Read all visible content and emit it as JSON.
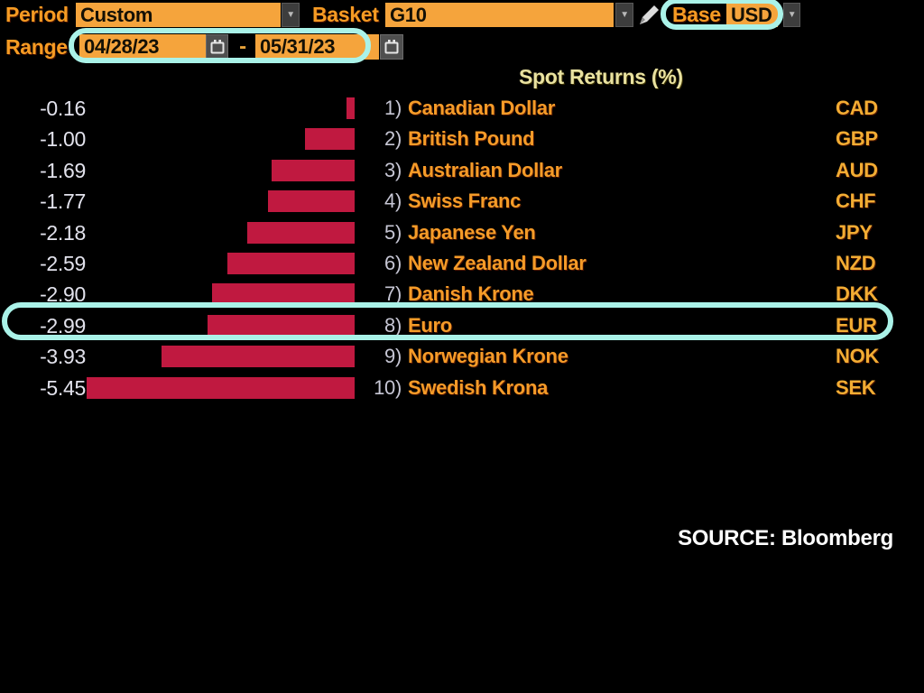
{
  "toolbar": {
    "period": {
      "label": "Period",
      "value": "Custom"
    },
    "basket": {
      "label": "Basket",
      "value": "G10"
    },
    "base": {
      "label": "Base",
      "value": "USD"
    },
    "range": {
      "label": "Range",
      "start": "04/28/23",
      "separator": "-",
      "end": "05/31/23"
    }
  },
  "icons": {
    "dropdown_arrow": "▼",
    "pencil": "edit-pencil",
    "calendar": "calendar"
  },
  "chart_data": {
    "type": "bar",
    "orientation": "horizontal",
    "title": "Spot Returns (%)",
    "unit": "%",
    "value_axis": {
      "min": -5.45,
      "max": 0,
      "zero_anchor": "right"
    },
    "grid": false,
    "legend": false,
    "bar_color": "#C01940",
    "rows": [
      {
        "rank": "1)",
        "name": "Canadian Dollar",
        "code": "CAD",
        "value": -0.16,
        "value_label": "-0.16"
      },
      {
        "rank": "2)",
        "name": "British Pound",
        "code": "GBP",
        "value": -1.0,
        "value_label": "-1.00"
      },
      {
        "rank": "3)",
        "name": "Australian Dollar",
        "code": "AUD",
        "value": -1.69,
        "value_label": "-1.69"
      },
      {
        "rank": "4)",
        "name": "Swiss Franc",
        "code": "CHF",
        "value": -1.77,
        "value_label": "-1.77"
      },
      {
        "rank": "5)",
        "name": "Japanese Yen",
        "code": "JPY",
        "value": -2.18,
        "value_label": "-2.18"
      },
      {
        "rank": "6)",
        "name": "New Zealand Dollar",
        "code": "NZD",
        "value": -2.59,
        "value_label": "-2.59"
      },
      {
        "rank": "7)",
        "name": "Danish Krone",
        "code": "DKK",
        "value": -2.9,
        "value_label": "-2.90"
      },
      {
        "rank": "8)",
        "name": "Euro",
        "code": "EUR",
        "value": -2.99,
        "value_label": "-2.99"
      },
      {
        "rank": "9)",
        "name": "Norwegian Krone",
        "code": "NOK",
        "value": -3.93,
        "value_label": "-3.93"
      },
      {
        "rank": "10)",
        "name": "Swedish Krona",
        "code": "SEK",
        "value": -5.45,
        "value_label": "-5.45"
      }
    ],
    "highlighted_row": {
      "code": "EUR",
      "name": "Euro",
      "value": -2.99
    }
  },
  "annotations": {
    "highlight_color": "#AAF2E8",
    "highlighted_elements": [
      "base-selector",
      "date-range",
      "euro-row"
    ]
  },
  "source_note": {
    "text": "SOURCE: Bloomberg"
  }
}
